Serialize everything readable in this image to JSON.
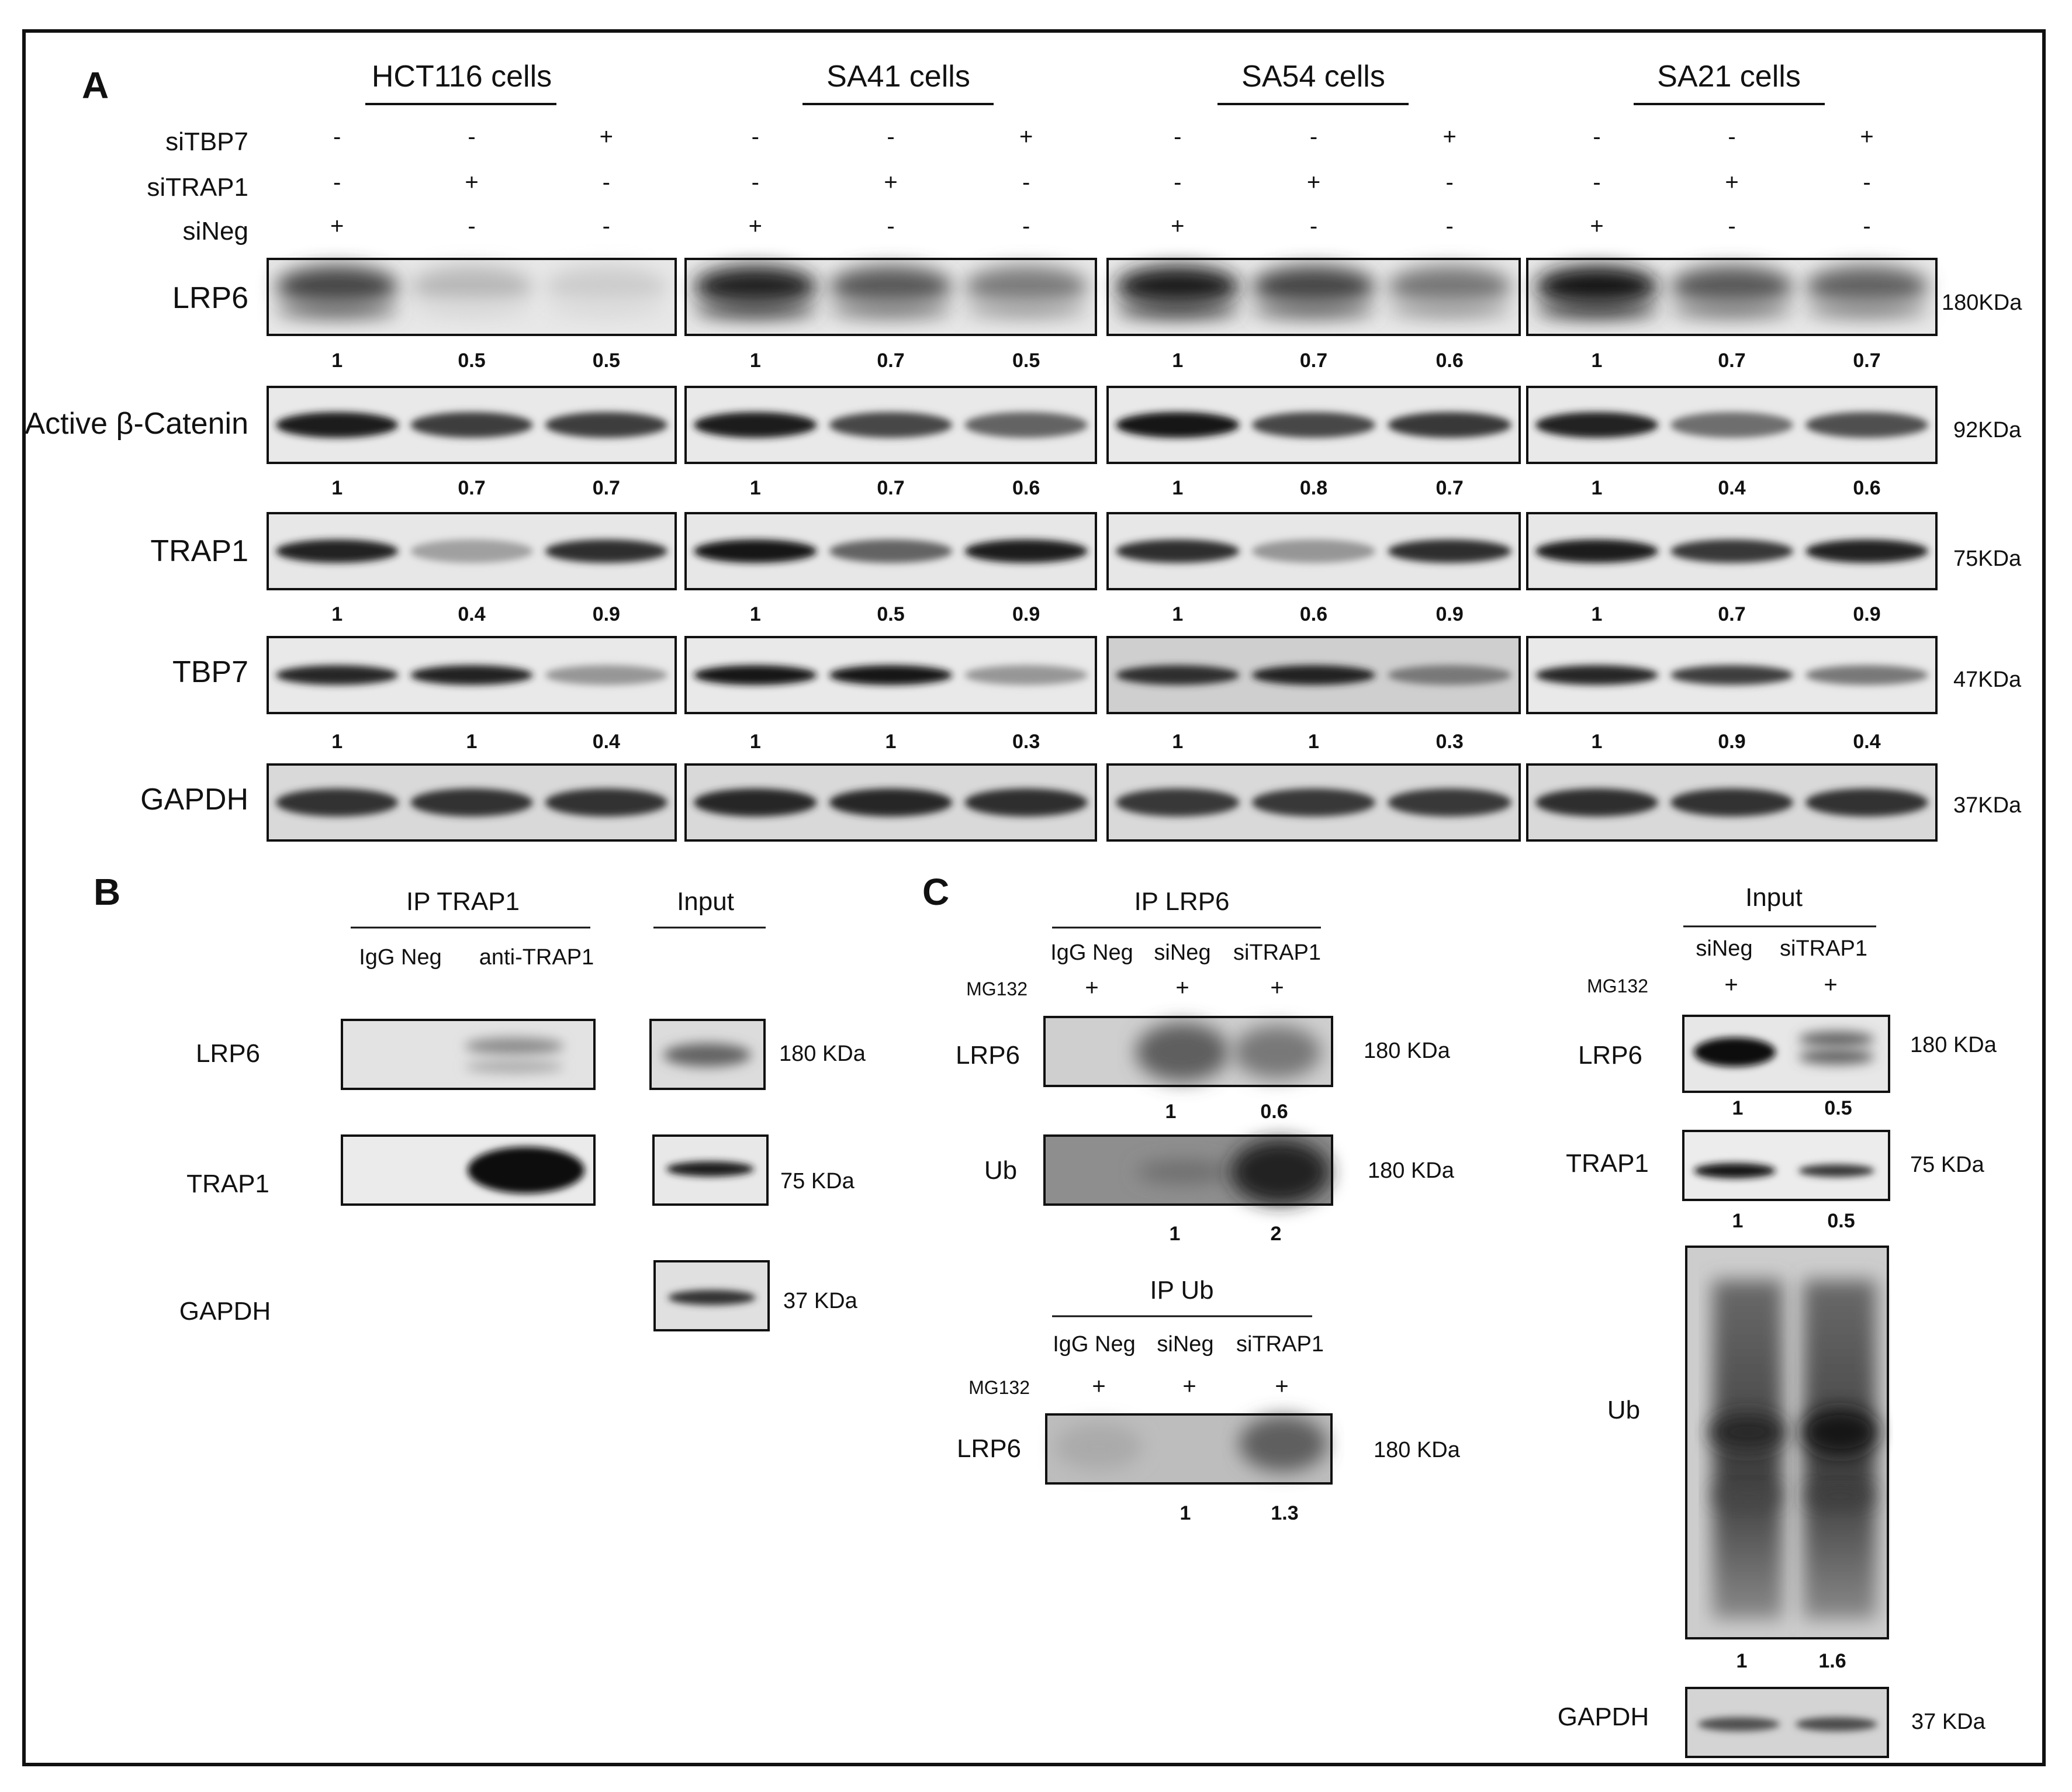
{
  "panelA": {
    "letter": "A",
    "cells": [
      "HCT116 cells",
      "SA41 cells",
      "SA54 cells",
      "SA21 cells"
    ],
    "conditions": [
      {
        "label": "siTBP7",
        "signs": [
          "-",
          "-",
          "+"
        ]
      },
      {
        "label": "siTRAP1",
        "signs": [
          "-",
          "+",
          "-"
        ]
      },
      {
        "label": "siNeg",
        "signs": [
          "+",
          "-",
          "-"
        ]
      }
    ],
    "blots": [
      {
        "label": "LRP6",
        "size": "180KDa",
        "quant": [
          [
            "1",
            "0.5",
            "0.5"
          ],
          [
            "1",
            "0.7",
            "0.5"
          ],
          [
            "1",
            "0.7",
            "0.6"
          ],
          [
            "1",
            "0.7",
            "0.7"
          ]
        ]
      },
      {
        "label": "Active β-Catenin",
        "size": "92KDa",
        "quant": [
          [
            "1",
            "0.7",
            "0.7"
          ],
          [
            "1",
            "0.7",
            "0.6"
          ],
          [
            "1",
            "0.8",
            "0.7"
          ],
          [
            "1",
            "0.4",
            "0.6"
          ]
        ]
      },
      {
        "label": "TRAP1",
        "size": "75KDa",
        "quant": [
          [
            "1",
            "0.4",
            "0.9"
          ],
          [
            "1",
            "0.5",
            "0.9"
          ],
          [
            "1",
            "0.6",
            "0.9"
          ],
          [
            "1",
            "0.7",
            "0.9"
          ]
        ]
      },
      {
        "label": "TBP7",
        "size": "47KDa",
        "quant": [
          [
            "1",
            "1",
            "0.4"
          ],
          [
            "1",
            "1",
            "0.3"
          ],
          [
            "1",
            "1",
            "0.3"
          ],
          [
            "1",
            "0.9",
            "0.4"
          ]
        ]
      },
      {
        "label": "GAPDH",
        "size": "37KDa",
        "quant": null
      }
    ]
  },
  "panelB": {
    "letter": "B",
    "ip_title": "IP TRAP1",
    "input_title": "Input",
    "lanes": [
      "IgG Neg",
      "anti-TRAP1"
    ],
    "rows": [
      {
        "label": "LRP6",
        "size": "180 KDa"
      },
      {
        "label": "TRAP1",
        "size": "75 KDa"
      },
      {
        "label": "GAPDH",
        "size": "37 KDa"
      }
    ]
  },
  "panelC": {
    "letter": "C",
    "ip_lrp6": {
      "title": "IP LRP6",
      "lanes": [
        "IgG Neg",
        "siNeg",
        "siTRAP1"
      ],
      "treatment": "MG132",
      "signs": [
        "+",
        "+",
        "+"
      ],
      "rows": [
        {
          "label": "LRP6",
          "size": "180 KDa",
          "quant": [
            "1",
            "0.6"
          ]
        },
        {
          "label": "Ub",
          "size": "180 KDa",
          "quant": [
            "1",
            "2"
          ]
        }
      ]
    },
    "ip_ub": {
      "title": "IP Ub",
      "lanes": [
        "IgG Neg",
        "siNeg",
        "siTRAP1"
      ],
      "treatment": "MG132",
      "signs": [
        "+",
        "+",
        "+"
      ],
      "rows": [
        {
          "label": "LRP6",
          "size": "180 KDa",
          "quant": [
            "1",
            "1.3"
          ]
        }
      ]
    },
    "input": {
      "title": "Input",
      "lanes": [
        "siNeg",
        "siTRAP1"
      ],
      "treatment": "MG132",
      "signs": [
        "+",
        "+"
      ],
      "rows": [
        {
          "label": "LRP6",
          "size": "180 KDa",
          "quant": [
            "1",
            "0.5"
          ]
        },
        {
          "label": "TRAP1",
          "size": "75 KDa",
          "quant": [
            "1",
            "0.5"
          ]
        },
        {
          "label": "Ub",
          "size": "",
          "quant": [
            "1",
            "1.6"
          ]
        },
        {
          "label": "GAPDH",
          "size": "37 KDa",
          "quant": null
        }
      ]
    }
  }
}
